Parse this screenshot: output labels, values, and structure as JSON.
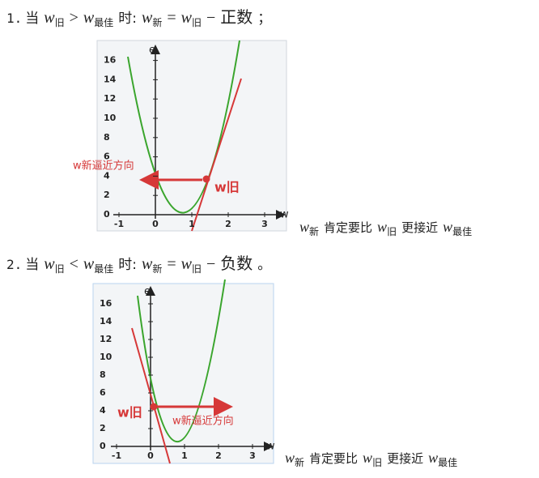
{
  "items": [
    {
      "heading": [
        {
          "t": "1.",
          "k": "num"
        },
        {
          "t": "当",
          "k": "cjk"
        },
        {
          "t": "w",
          "k": "math"
        },
        {
          "t": "旧",
          "k": "sub"
        },
        {
          "t": ">",
          "k": "op"
        },
        {
          "t": "w",
          "k": "math"
        },
        {
          "t": "最佳",
          "k": "sub"
        },
        {
          "t": "时:",
          "k": "cjk"
        },
        {
          "t": "w",
          "k": "math"
        },
        {
          "t": "新",
          "k": "sub"
        },
        {
          "t": "=",
          "k": "op"
        },
        {
          "t": "w",
          "k": "math"
        },
        {
          "t": "旧",
          "k": "sub"
        },
        {
          "t": "−",
          "k": "op"
        },
        {
          "t": "正数",
          "k": "big"
        },
        {
          "t": "；",
          "k": "cjk"
        }
      ],
      "figure": {
        "xticks": [
          -1,
          0,
          1,
          2,
          3
        ],
        "yticks": [
          0,
          2,
          4,
          6,
          8,
          10,
          12,
          14,
          16
        ],
        "x_label": "w",
        "y_label": "e",
        "arrow_label": "w新逼近方向",
        "point_label": "w旧"
      },
      "caption": [
        {
          "t": "w",
          "k": "math"
        },
        {
          "t": "新",
          "k": "sub"
        },
        {
          "t": "肯定要比",
          "k": "cjk"
        },
        {
          "t": "w",
          "k": "math"
        },
        {
          "t": "旧",
          "k": "sub"
        },
        {
          "t": "更接近",
          "k": "cjk"
        },
        {
          "t": "w",
          "k": "math"
        },
        {
          "t": "最佳",
          "k": "sub"
        }
      ]
    },
    {
      "heading": [
        {
          "t": "2.",
          "k": "num"
        },
        {
          "t": "当",
          "k": "cjk"
        },
        {
          "t": "w",
          "k": "math"
        },
        {
          "t": "旧",
          "k": "sub"
        },
        {
          "t": "<",
          "k": "op"
        },
        {
          "t": "w",
          "k": "math"
        },
        {
          "t": "最佳",
          "k": "sub"
        },
        {
          "t": "时:",
          "k": "cjk"
        },
        {
          "t": "w",
          "k": "math"
        },
        {
          "t": "新",
          "k": "sub"
        },
        {
          "t": "=",
          "k": "op"
        },
        {
          "t": "w",
          "k": "math"
        },
        {
          "t": "旧",
          "k": "sub"
        },
        {
          "t": "−",
          "k": "op"
        },
        {
          "t": "负数",
          "k": "big"
        },
        {
          "t": "。",
          "k": "cjk"
        }
      ],
      "figure": {
        "xticks": [
          -1,
          0,
          1,
          2,
          3
        ],
        "yticks": [
          0,
          2,
          4,
          6,
          8,
          10,
          12,
          14,
          16
        ],
        "x_label": "w",
        "y_label": "e",
        "arrow_label": "w新逼近方向",
        "point_label": "w旧"
      },
      "caption": [
        {
          "t": "w",
          "k": "math"
        },
        {
          "t": "新",
          "k": "sub"
        },
        {
          "t": "肯定要比",
          "k": "cjk"
        },
        {
          "t": "w",
          "k": "math"
        },
        {
          "t": "旧",
          "k": "sub"
        },
        {
          "t": "更接近",
          "k": "cjk"
        },
        {
          "t": "w",
          "k": "math"
        },
        {
          "t": "最佳",
          "k": "sub"
        }
      ]
    }
  ]
}
